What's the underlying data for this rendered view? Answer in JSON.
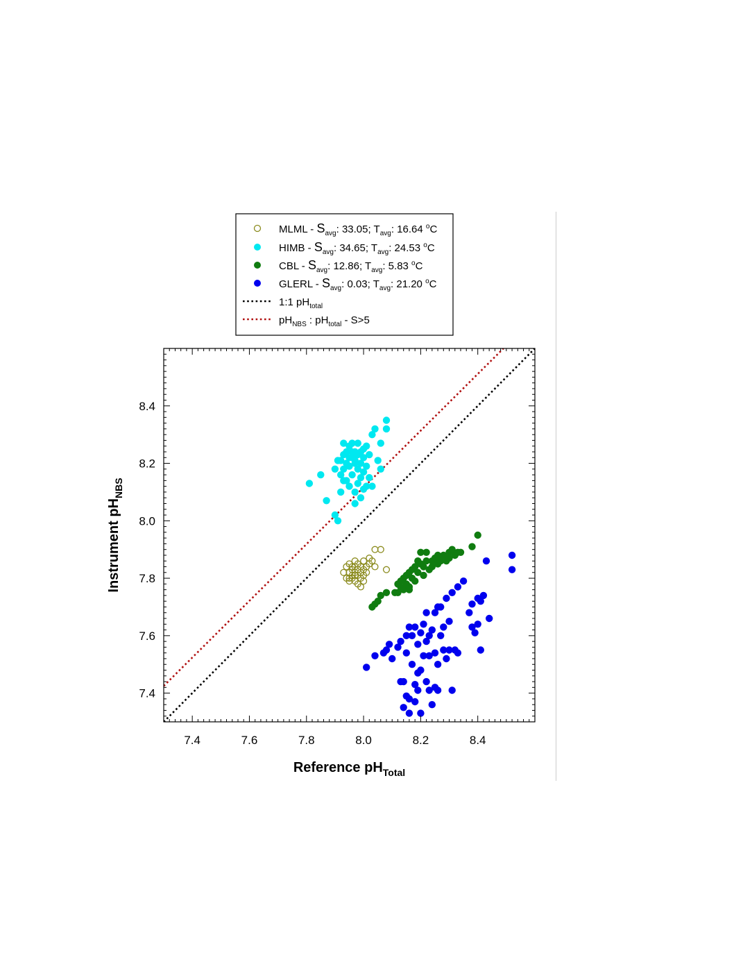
{
  "chart_data": {
    "type": "scatter",
    "xlabel": {
      "main": "Reference pH",
      "sub": "Total"
    },
    "ylabel": {
      "main": "Instrument pH",
      "sub": "NBS"
    },
    "xlim": [
      7.3,
      8.6
    ],
    "ylim": [
      7.3,
      8.6
    ],
    "x_ticks": [
      "7.4",
      "7.6",
      "7.8",
      "8.0",
      "8.2",
      "8.4"
    ],
    "y_ticks": [
      "7.4",
      "7.6",
      "7.8",
      "8.0",
      "8.2",
      "8.4"
    ],
    "grid": false,
    "legend_position": "above plot",
    "legend": [
      {
        "name": "MLML",
        "marker": "open-circle",
        "color": "#8b8b1e",
        "s_avg": "33.05",
        "t_avg": "16.64"
      },
      {
        "name": "HIMB",
        "marker": "filled-circle",
        "color": "#00e8f0",
        "s_avg": "34.65",
        "t_avg": "24.53"
      },
      {
        "name": "CBL",
        "marker": "filled-circle",
        "color": "#107c10",
        "s_avg": "12.86",
        "t_avg": "5.83"
      },
      {
        "name": "GLERL",
        "marker": "filled-circle",
        "color": "#0000ee",
        "s_avg": "0.03",
        "t_avg": "21.20"
      },
      {
        "name": "1:1 pH",
        "marker": "dotted-line",
        "color": "#000000"
      },
      {
        "name": "pH",
        "marker": "dotted-line",
        "color": "#b01010"
      }
    ],
    "legend_text": {
      "s": "S",
      "t": "T",
      "avg": "avg",
      "unit": "C",
      "degree": "o",
      "dash": " - ",
      "s_colon": ": ",
      "sep": "; ",
      "total": "total",
      "nbs": "NBS",
      "colon_ph": " : pH",
      "s_gt": " - S>5"
    },
    "lines": [
      {
        "name": "1:1 pH_total",
        "x": [
          7.3,
          8.6
        ],
        "y": [
          7.3,
          8.6
        ],
        "color": "#000000"
      },
      {
        "name": "pH_NBS : pH_total - S>5",
        "x": [
          7.3,
          8.49
        ],
        "y": [
          7.425,
          8.6
        ],
        "color": "#b01010"
      }
    ],
    "series": [
      {
        "name": "HIMB",
        "color": "#00e8f0",
        "filled": true,
        "points": [
          [
            7.81,
            8.13
          ],
          [
            7.85,
            8.16
          ],
          [
            7.87,
            8.07
          ],
          [
            7.9,
            8.02
          ],
          [
            7.91,
            8.0
          ],
          [
            7.92,
            8.1
          ],
          [
            7.9,
            8.18
          ],
          [
            7.92,
            8.21
          ],
          [
            7.93,
            8.23
          ],
          [
            7.93,
            8.14
          ],
          [
            7.94,
            8.2
          ],
          [
            7.94,
            8.24
          ],
          [
            7.95,
            8.26
          ],
          [
            7.95,
            8.19
          ],
          [
            7.95,
            8.12
          ],
          [
            7.96,
            8.16
          ],
          [
            7.96,
            8.22
          ],
          [
            7.96,
            8.27
          ],
          [
            7.97,
            8.21
          ],
          [
            7.97,
            8.24
          ],
          [
            7.97,
            8.1
          ],
          [
            7.97,
            8.06
          ],
          [
            7.98,
            8.18
          ],
          [
            7.98,
            8.23
          ],
          [
            7.98,
            8.27
          ],
          [
            7.99,
            8.2
          ],
          [
            7.99,
            8.15
          ],
          [
            7.99,
            8.08
          ],
          [
            8.0,
            8.25
          ],
          [
            8.0,
            8.22
          ],
          [
            8.0,
            8.17
          ],
          [
            8.01,
            8.26
          ],
          [
            8.01,
            8.19
          ],
          [
            8.01,
            8.12
          ],
          [
            8.02,
            8.23
          ],
          [
            8.02,
            8.15
          ],
          [
            8.03,
            8.3
          ],
          [
            8.03,
            8.12
          ],
          [
            8.04,
            8.32
          ],
          [
            8.05,
            8.21
          ],
          [
            8.06,
            8.18
          ],
          [
            8.06,
            8.27
          ],
          [
            8.08,
            8.35
          ],
          [
            8.08,
            8.32
          ],
          [
            7.92,
            8.16
          ],
          [
            7.93,
            8.18
          ],
          [
            7.94,
            8.14
          ],
          [
            7.95,
            8.22
          ],
          [
            7.98,
            8.13
          ],
          [
            7.99,
            8.24
          ],
          [
            8.0,
            8.11
          ],
          [
            7.91,
            8.21
          ],
          [
            7.96,
            8.24
          ],
          [
            7.93,
            8.27
          ],
          [
            7.97,
            8.2
          ]
        ]
      },
      {
        "name": "MLML",
        "color": "#8b8b1e",
        "filled": false,
        "points": [
          [
            7.93,
            7.82
          ],
          [
            7.94,
            7.8
          ],
          [
            7.94,
            7.84
          ],
          [
            7.95,
            7.79
          ],
          [
            7.95,
            7.82
          ],
          [
            7.95,
            7.85
          ],
          [
            7.96,
            7.8
          ],
          [
            7.96,
            7.83
          ],
          [
            7.96,
            7.81
          ],
          [
            7.97,
            7.84
          ],
          [
            7.97,
            7.79
          ],
          [
            7.97,
            7.82
          ],
          [
            7.97,
            7.86
          ],
          [
            7.98,
            7.81
          ],
          [
            7.98,
            7.83
          ],
          [
            7.98,
            7.85
          ],
          [
            7.98,
            7.78
          ],
          [
            7.99,
            7.82
          ],
          [
            7.99,
            7.84
          ],
          [
            7.99,
            7.8
          ],
          [
            8.0,
            7.83
          ],
          [
            8.0,
            7.86
          ],
          [
            8.0,
            7.81
          ],
          [
            8.01,
            7.84
          ],
          [
            8.01,
            7.82
          ],
          [
            8.02,
            7.85
          ],
          [
            8.02,
            7.87
          ],
          [
            8.03,
            7.86
          ],
          [
            8.04,
            7.84
          ],
          [
            8.04,
            7.9
          ],
          [
            8.06,
            7.9
          ],
          [
            8.08,
            7.83
          ],
          [
            7.95,
            7.8
          ],
          [
            7.96,
            7.84
          ],
          [
            7.99,
            7.77
          ],
          [
            7.97,
            7.81
          ],
          [
            8.0,
            7.79
          ]
        ]
      },
      {
        "name": "CBL",
        "color": "#107c10",
        "filled": true,
        "points": [
          [
            8.03,
            7.7
          ],
          [
            8.04,
            7.71
          ],
          [
            8.05,
            7.72
          ],
          [
            8.06,
            7.74
          ],
          [
            8.08,
            7.75
          ],
          [
            8.11,
            7.75
          ],
          [
            8.12,
            7.78
          ],
          [
            8.12,
            7.75
          ],
          [
            8.13,
            7.77
          ],
          [
            8.13,
            7.79
          ],
          [
            8.14,
            7.76
          ],
          [
            8.14,
            7.8
          ],
          [
            8.15,
            7.78
          ],
          [
            8.15,
            7.81
          ],
          [
            8.16,
            7.77
          ],
          [
            8.16,
            7.82
          ],
          [
            8.17,
            7.8
          ],
          [
            8.17,
            7.83
          ],
          [
            8.18,
            7.79
          ],
          [
            8.18,
            7.84
          ],
          [
            8.19,
            7.82
          ],
          [
            8.2,
            7.85
          ],
          [
            8.2,
            7.89
          ],
          [
            8.21,
            7.84
          ],
          [
            8.22,
            7.86
          ],
          [
            8.22,
            7.89
          ],
          [
            8.23,
            7.83
          ],
          [
            8.24,
            7.86
          ],
          [
            8.24,
            7.84
          ],
          [
            8.25,
            7.87
          ],
          [
            8.26,
            7.85
          ],
          [
            8.26,
            7.88
          ],
          [
            8.27,
            7.86
          ],
          [
            8.28,
            7.88
          ],
          [
            8.29,
            7.86
          ],
          [
            8.3,
            7.89
          ],
          [
            8.3,
            7.87
          ],
          [
            8.31,
            7.9
          ],
          [
            8.32,
            7.88
          ],
          [
            8.33,
            7.89
          ],
          [
            8.34,
            7.89
          ],
          [
            8.38,
            7.91
          ],
          [
            8.4,
            7.95
          ],
          [
            8.21,
            7.81
          ],
          [
            8.19,
            7.86
          ],
          [
            8.16,
            7.76
          ]
        ]
      },
      {
        "name": "GLERL",
        "color": "#0000ee",
        "filled": true,
        "points": [
          [
            8.01,
            7.49
          ],
          [
            8.04,
            7.53
          ],
          [
            8.07,
            7.54
          ],
          [
            8.08,
            7.55
          ],
          [
            8.09,
            7.57
          ],
          [
            8.1,
            7.52
          ],
          [
            8.12,
            7.56
          ],
          [
            8.13,
            7.58
          ],
          [
            8.13,
            7.44
          ],
          [
            8.14,
            7.35
          ],
          [
            8.14,
            7.44
          ],
          [
            8.15,
            7.39
          ],
          [
            8.15,
            7.54
          ],
          [
            8.15,
            7.6
          ],
          [
            8.16,
            7.63
          ],
          [
            8.16,
            7.38
          ],
          [
            8.16,
            7.33
          ],
          [
            8.17,
            7.5
          ],
          [
            8.17,
            7.6
          ],
          [
            8.18,
            7.63
          ],
          [
            8.18,
            7.43
          ],
          [
            8.18,
            7.37
          ],
          [
            8.19,
            7.47
          ],
          [
            8.19,
            7.41
          ],
          [
            8.19,
            7.57
          ],
          [
            8.2,
            7.61
          ],
          [
            8.2,
            7.33
          ],
          [
            8.2,
            7.48
          ],
          [
            8.21,
            7.64
          ],
          [
            8.21,
            7.53
          ],
          [
            8.22,
            7.44
          ],
          [
            8.22,
            7.68
          ],
          [
            8.23,
            7.41
          ],
          [
            8.23,
            7.53
          ],
          [
            8.23,
            7.6
          ],
          [
            8.24,
            7.36
          ],
          [
            8.24,
            7.62
          ],
          [
            8.25,
            7.42
          ],
          [
            8.25,
            7.54
          ],
          [
            8.25,
            7.68
          ],
          [
            8.26,
            7.5
          ],
          [
            8.26,
            7.41
          ],
          [
            8.27,
            7.6
          ],
          [
            8.27,
            7.7
          ],
          [
            8.28,
            7.55
          ],
          [
            8.28,
            7.63
          ],
          [
            8.29,
            7.52
          ],
          [
            8.29,
            7.73
          ],
          [
            8.3,
            7.55
          ],
          [
            8.3,
            7.65
          ],
          [
            8.31,
            7.41
          ],
          [
            8.31,
            7.75
          ],
          [
            8.32,
            7.55
          ],
          [
            8.33,
            7.77
          ],
          [
            8.33,
            7.54
          ],
          [
            8.35,
            7.79
          ],
          [
            8.37,
            7.68
          ],
          [
            8.38,
            7.71
          ],
          [
            8.38,
            7.63
          ],
          [
            8.39,
            7.61
          ],
          [
            8.4,
            7.73
          ],
          [
            8.4,
            7.64
          ],
          [
            8.41,
            7.55
          ],
          [
            8.41,
            7.72
          ],
          [
            8.42,
            7.74
          ],
          [
            8.43,
            7.86
          ],
          [
            8.44,
            7.66
          ],
          [
            8.52,
            7.88
          ],
          [
            8.52,
            7.83
          ],
          [
            8.26,
            7.7
          ],
          [
            8.22,
            7.58
          ]
        ]
      }
    ]
  }
}
